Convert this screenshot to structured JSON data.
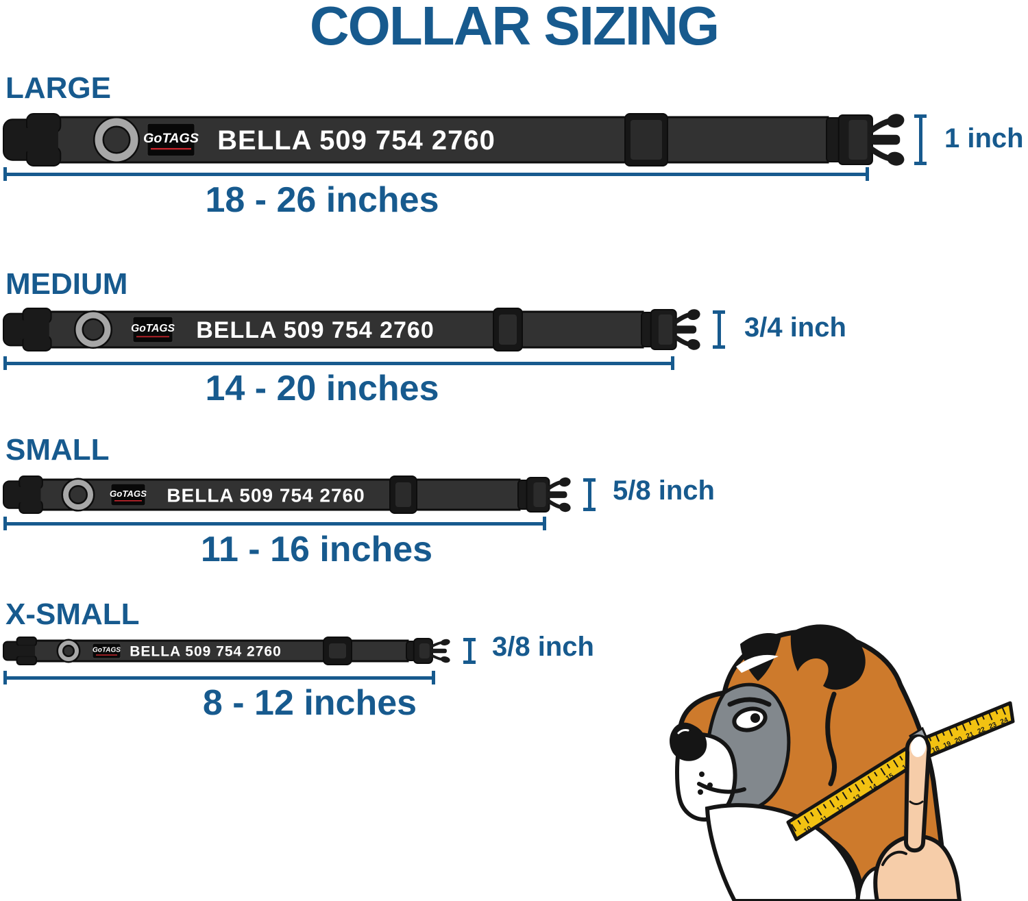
{
  "title": "COLLAR SIZING",
  "brand": "GoTAGS",
  "personalization": "BELLA 509 754 2760",
  "sizes": [
    {
      "id": "large",
      "label": "LARGE",
      "width_label": "1 inch",
      "range_label": "18 - 26 inches"
    },
    {
      "id": "medium",
      "label": "MEDIUM",
      "width_label": "3/4 inch",
      "range_label": "14 - 20 inches"
    },
    {
      "id": "small",
      "label": "SMALL",
      "width_label": "5/8 inch",
      "range_label": "11 - 16 inches"
    },
    {
      "id": "x-small",
      "label": "X-SMALL",
      "width_label": "3/8 inch",
      "range_label": "8 - 12 inches"
    }
  ],
  "measuring_tape": {
    "lower_numbers": [
      "10",
      "11",
      "12",
      "13",
      "14",
      "15",
      "16"
    ],
    "upper_numbers": [
      "18",
      "19",
      "20",
      "21",
      "22",
      "23",
      "24"
    ]
  },
  "colors": {
    "accent_blue": "#175A8E",
    "collar_strap": "#323232",
    "collar_hardware": "#1A1A1A",
    "d_ring_gray": "#A7A7A7",
    "brand_underline_red": "#C4242B",
    "name_text": "#FFFFFF",
    "tape_yellow": "#F2C212",
    "dog_tan": "#CD7A2C",
    "dog_gray": "#82888D",
    "hand_skin": "#F6CDA9"
  },
  "icons": {
    "d_ring": "d-ring-icon",
    "buckle_female": "buckle-female-icon",
    "buckle_male": "buckle-male-icon",
    "slider": "tri-glide-slider-icon",
    "width_bracket": "width-bracket-icon",
    "length_line": "length-measure-line",
    "tape": "measuring-tape-icon",
    "hand": "hand-icon"
  }
}
